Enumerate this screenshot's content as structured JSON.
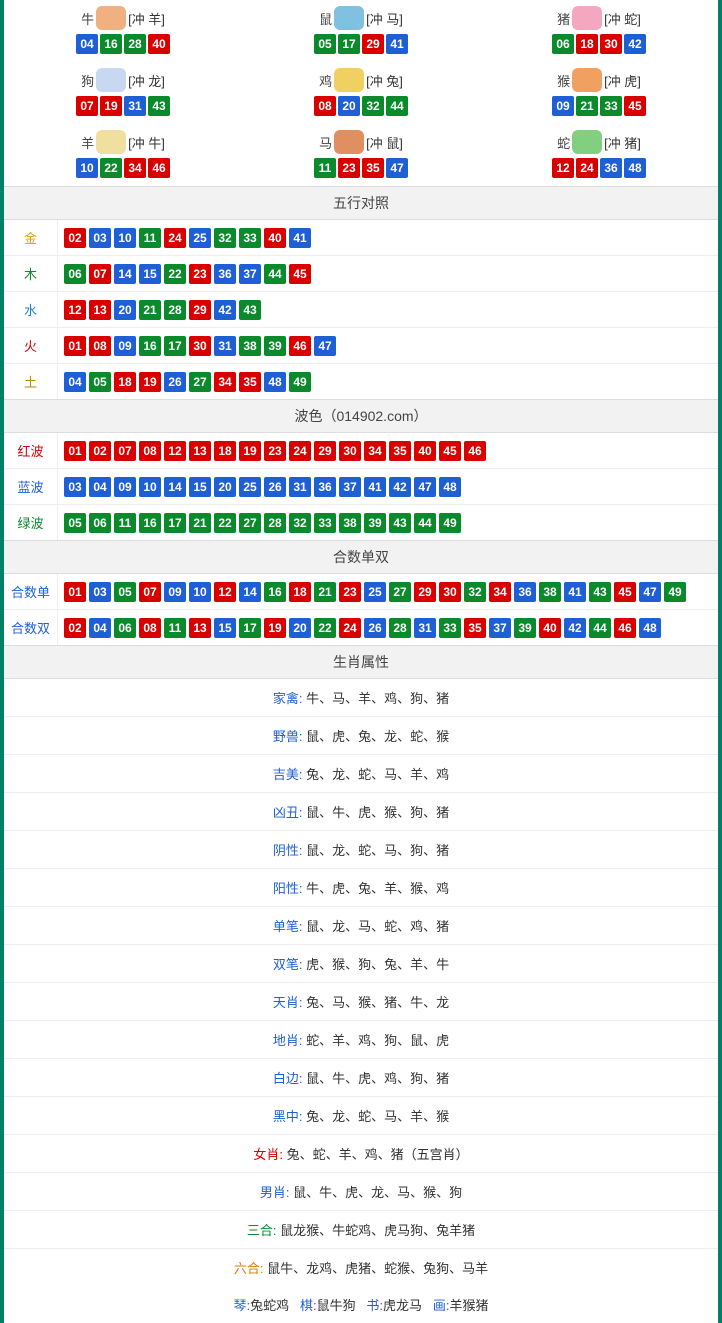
{
  "colors": {
    "red": "#d90000",
    "blue": "#1e5fd6",
    "green": "#0a8a2a"
  },
  "zodiac_icons": {
    "牛": "#f0b080",
    "鼠": "#80c0e0",
    "猪": "#f4a8c0",
    "狗": "#c8d8f0",
    "鸡": "#f0d060",
    "猴": "#f0a060",
    "羊": "#f0e0a0",
    "马": "#e09060",
    "蛇": "#80d080"
  },
  "zodiac": [
    {
      "name": "牛",
      "clash": "[冲 羊]",
      "nums": [
        {
          "n": "04",
          "c": "blue"
        },
        {
          "n": "16",
          "c": "green"
        },
        {
          "n": "28",
          "c": "green"
        },
        {
          "n": "40",
          "c": "red"
        }
      ]
    },
    {
      "name": "鼠",
      "clash": "[冲 马]",
      "nums": [
        {
          "n": "05",
          "c": "green"
        },
        {
          "n": "17",
          "c": "green"
        },
        {
          "n": "29",
          "c": "red"
        },
        {
          "n": "41",
          "c": "blue"
        }
      ]
    },
    {
      "name": "猪",
      "clash": "[冲 蛇]",
      "nums": [
        {
          "n": "06",
          "c": "green"
        },
        {
          "n": "18",
          "c": "red"
        },
        {
          "n": "30",
          "c": "red"
        },
        {
          "n": "42",
          "c": "blue"
        }
      ]
    },
    {
      "name": "狗",
      "clash": "[冲 龙]",
      "nums": [
        {
          "n": "07",
          "c": "red"
        },
        {
          "n": "19",
          "c": "red"
        },
        {
          "n": "31",
          "c": "blue"
        },
        {
          "n": "43",
          "c": "green"
        }
      ]
    },
    {
      "name": "鸡",
      "clash": "[冲 兔]",
      "nums": [
        {
          "n": "08",
          "c": "red"
        },
        {
          "n": "20",
          "c": "blue"
        },
        {
          "n": "32",
          "c": "green"
        },
        {
          "n": "44",
          "c": "green"
        }
      ]
    },
    {
      "name": "猴",
      "clash": "[冲 虎]",
      "nums": [
        {
          "n": "09",
          "c": "blue"
        },
        {
          "n": "21",
          "c": "green"
        },
        {
          "n": "33",
          "c": "green"
        },
        {
          "n": "45",
          "c": "red"
        }
      ]
    },
    {
      "name": "羊",
      "clash": "[冲 牛]",
      "nums": [
        {
          "n": "10",
          "c": "blue"
        },
        {
          "n": "22",
          "c": "green"
        },
        {
          "n": "34",
          "c": "red"
        },
        {
          "n": "46",
          "c": "red"
        }
      ]
    },
    {
      "name": "马",
      "clash": "[冲 鼠]",
      "nums": [
        {
          "n": "11",
          "c": "green"
        },
        {
          "n": "23",
          "c": "red"
        },
        {
          "n": "35",
          "c": "red"
        },
        {
          "n": "47",
          "c": "blue"
        }
      ]
    },
    {
      "name": "蛇",
      "clash": "[冲 猪]",
      "nums": [
        {
          "n": "12",
          "c": "red"
        },
        {
          "n": "24",
          "c": "red"
        },
        {
          "n": "36",
          "c": "blue"
        },
        {
          "n": "48",
          "c": "blue"
        }
      ]
    }
  ],
  "sections": {
    "wuxing_title": "五行对照",
    "bose_title": "波色（014902.com）",
    "heshu_title": "合数单双",
    "shengxiao_title": "生肖属性"
  },
  "wuxing": [
    {
      "label": "金",
      "cls": "gold",
      "nums": [
        {
          "n": "02",
          "c": "red"
        },
        {
          "n": "03",
          "c": "blue"
        },
        {
          "n": "10",
          "c": "blue"
        },
        {
          "n": "11",
          "c": "green"
        },
        {
          "n": "24",
          "c": "red"
        },
        {
          "n": "25",
          "c": "blue"
        },
        {
          "n": "32",
          "c": "green"
        },
        {
          "n": "33",
          "c": "green"
        },
        {
          "n": "40",
          "c": "red"
        },
        {
          "n": "41",
          "c": "blue"
        }
      ]
    },
    {
      "label": "木",
      "cls": "wood",
      "nums": [
        {
          "n": "06",
          "c": "green"
        },
        {
          "n": "07",
          "c": "red"
        },
        {
          "n": "14",
          "c": "blue"
        },
        {
          "n": "15",
          "c": "blue"
        },
        {
          "n": "22",
          "c": "green"
        },
        {
          "n": "23",
          "c": "red"
        },
        {
          "n": "36",
          "c": "blue"
        },
        {
          "n": "37",
          "c": "blue"
        },
        {
          "n": "44",
          "c": "green"
        },
        {
          "n": "45",
          "c": "red"
        }
      ]
    },
    {
      "label": "水",
      "cls": "water",
      "nums": [
        {
          "n": "12",
          "c": "red"
        },
        {
          "n": "13",
          "c": "red"
        },
        {
          "n": "20",
          "c": "blue"
        },
        {
          "n": "21",
          "c": "green"
        },
        {
          "n": "28",
          "c": "green"
        },
        {
          "n": "29",
          "c": "red"
        },
        {
          "n": "42",
          "c": "blue"
        },
        {
          "n": "43",
          "c": "green"
        }
      ]
    },
    {
      "label": "火",
      "cls": "fire",
      "nums": [
        {
          "n": "01",
          "c": "red"
        },
        {
          "n": "08",
          "c": "red"
        },
        {
          "n": "09",
          "c": "blue"
        },
        {
          "n": "16",
          "c": "green"
        },
        {
          "n": "17",
          "c": "green"
        },
        {
          "n": "30",
          "c": "red"
        },
        {
          "n": "31",
          "c": "blue"
        },
        {
          "n": "38",
          "c": "green"
        },
        {
          "n": "39",
          "c": "green"
        },
        {
          "n": "46",
          "c": "red"
        },
        {
          "n": "47",
          "c": "blue"
        }
      ]
    },
    {
      "label": "土",
      "cls": "earth",
      "nums": [
        {
          "n": "04",
          "c": "blue"
        },
        {
          "n": "05",
          "c": "green"
        },
        {
          "n": "18",
          "c": "red"
        },
        {
          "n": "19",
          "c": "red"
        },
        {
          "n": "26",
          "c": "blue"
        },
        {
          "n": "27",
          "c": "green"
        },
        {
          "n": "34",
          "c": "red"
        },
        {
          "n": "35",
          "c": "red"
        },
        {
          "n": "48",
          "c": "blue"
        },
        {
          "n": "49",
          "c": "green"
        }
      ]
    }
  ],
  "bose": [
    {
      "label": "红波",
      "cls": "red",
      "nums": [
        {
          "n": "01",
          "c": "red"
        },
        {
          "n": "02",
          "c": "red"
        },
        {
          "n": "07",
          "c": "red"
        },
        {
          "n": "08",
          "c": "red"
        },
        {
          "n": "12",
          "c": "red"
        },
        {
          "n": "13",
          "c": "red"
        },
        {
          "n": "18",
          "c": "red"
        },
        {
          "n": "19",
          "c": "red"
        },
        {
          "n": "23",
          "c": "red"
        },
        {
          "n": "24",
          "c": "red"
        },
        {
          "n": "29",
          "c": "red"
        },
        {
          "n": "30",
          "c": "red"
        },
        {
          "n": "34",
          "c": "red"
        },
        {
          "n": "35",
          "c": "red"
        },
        {
          "n": "40",
          "c": "red"
        },
        {
          "n": "45",
          "c": "red"
        },
        {
          "n": "46",
          "c": "red"
        }
      ]
    },
    {
      "label": "蓝波",
      "cls": "blue",
      "nums": [
        {
          "n": "03",
          "c": "blue"
        },
        {
          "n": "04",
          "c": "blue"
        },
        {
          "n": "09",
          "c": "blue"
        },
        {
          "n": "10",
          "c": "blue"
        },
        {
          "n": "14",
          "c": "blue"
        },
        {
          "n": "15",
          "c": "blue"
        },
        {
          "n": "20",
          "c": "blue"
        },
        {
          "n": "25",
          "c": "blue"
        },
        {
          "n": "26",
          "c": "blue"
        },
        {
          "n": "31",
          "c": "blue"
        },
        {
          "n": "36",
          "c": "blue"
        },
        {
          "n": "37",
          "c": "blue"
        },
        {
          "n": "41",
          "c": "blue"
        },
        {
          "n": "42",
          "c": "blue"
        },
        {
          "n": "47",
          "c": "blue"
        },
        {
          "n": "48",
          "c": "blue"
        }
      ]
    },
    {
      "label": "绿波",
      "cls": "green",
      "nums": [
        {
          "n": "05",
          "c": "green"
        },
        {
          "n": "06",
          "c": "green"
        },
        {
          "n": "11",
          "c": "green"
        },
        {
          "n": "16",
          "c": "green"
        },
        {
          "n": "17",
          "c": "green"
        },
        {
          "n": "21",
          "c": "green"
        },
        {
          "n": "22",
          "c": "green"
        },
        {
          "n": "27",
          "c": "green"
        },
        {
          "n": "28",
          "c": "green"
        },
        {
          "n": "32",
          "c": "green"
        },
        {
          "n": "33",
          "c": "green"
        },
        {
          "n": "38",
          "c": "green"
        },
        {
          "n": "39",
          "c": "green"
        },
        {
          "n": "43",
          "c": "green"
        },
        {
          "n": "44",
          "c": "green"
        },
        {
          "n": "49",
          "c": "green"
        }
      ]
    }
  ],
  "heshu": [
    {
      "label": "合数单",
      "cls": "blue",
      "nums": [
        {
          "n": "01",
          "c": "red"
        },
        {
          "n": "03",
          "c": "blue"
        },
        {
          "n": "05",
          "c": "green"
        },
        {
          "n": "07",
          "c": "red"
        },
        {
          "n": "09",
          "c": "blue"
        },
        {
          "n": "10",
          "c": "blue"
        },
        {
          "n": "12",
          "c": "red"
        },
        {
          "n": "14",
          "c": "blue"
        },
        {
          "n": "16",
          "c": "green"
        },
        {
          "n": "18",
          "c": "red"
        },
        {
          "n": "21",
          "c": "green"
        },
        {
          "n": "23",
          "c": "red"
        },
        {
          "n": "25",
          "c": "blue"
        },
        {
          "n": "27",
          "c": "green"
        },
        {
          "n": "29",
          "c": "red"
        },
        {
          "n": "30",
          "c": "red"
        },
        {
          "n": "32",
          "c": "green"
        },
        {
          "n": "34",
          "c": "red"
        },
        {
          "n": "36",
          "c": "blue"
        },
        {
          "n": "38",
          "c": "green"
        },
        {
          "n": "41",
          "c": "blue"
        },
        {
          "n": "43",
          "c": "green"
        },
        {
          "n": "45",
          "c": "red"
        },
        {
          "n": "47",
          "c": "blue"
        },
        {
          "n": "49",
          "c": "green"
        }
      ]
    },
    {
      "label": "合数双",
      "cls": "blue",
      "nums": [
        {
          "n": "02",
          "c": "red"
        },
        {
          "n": "04",
          "c": "blue"
        },
        {
          "n": "06",
          "c": "green"
        },
        {
          "n": "08",
          "c": "red"
        },
        {
          "n": "11",
          "c": "green"
        },
        {
          "n": "13",
          "c": "red"
        },
        {
          "n": "15",
          "c": "blue"
        },
        {
          "n": "17",
          "c": "green"
        },
        {
          "n": "19",
          "c": "red"
        },
        {
          "n": "20",
          "c": "blue"
        },
        {
          "n": "22",
          "c": "green"
        },
        {
          "n": "24",
          "c": "red"
        },
        {
          "n": "26",
          "c": "blue"
        },
        {
          "n": "28",
          "c": "green"
        },
        {
          "n": "31",
          "c": "blue"
        },
        {
          "n": "33",
          "c": "green"
        },
        {
          "n": "35",
          "c": "red"
        },
        {
          "n": "37",
          "c": "blue"
        },
        {
          "n": "39",
          "c": "green"
        },
        {
          "n": "40",
          "c": "red"
        },
        {
          "n": "42",
          "c": "blue"
        },
        {
          "n": "44",
          "c": "green"
        },
        {
          "n": "46",
          "c": "red"
        },
        {
          "n": "48",
          "c": "blue"
        }
      ]
    }
  ],
  "attrs": [
    {
      "key": "家禽",
      "cls": "",
      "val": "牛、马、羊、鸡、狗、猪"
    },
    {
      "key": "野兽",
      "cls": "",
      "val": "鼠、虎、兔、龙、蛇、猴"
    },
    {
      "key": "吉美",
      "cls": "",
      "val": "兔、龙、蛇、马、羊、鸡"
    },
    {
      "key": "凶丑",
      "cls": "",
      "val": "鼠、牛、虎、猴、狗、猪"
    },
    {
      "key": "阴性",
      "cls": "",
      "val": "鼠、龙、蛇、马、狗、猪"
    },
    {
      "key": "阳性",
      "cls": "",
      "val": "牛、虎、兔、羊、猴、鸡"
    },
    {
      "key": "单笔",
      "cls": "",
      "val": "鼠、龙、马、蛇、鸡、猪"
    },
    {
      "key": "双笔",
      "cls": "",
      "val": "虎、猴、狗、兔、羊、牛"
    },
    {
      "key": "天肖",
      "cls": "",
      "val": "兔、马、猴、猪、牛、龙"
    },
    {
      "key": "地肖",
      "cls": "",
      "val": "蛇、羊、鸡、狗、鼠、虎"
    },
    {
      "key": "白边",
      "cls": "",
      "val": "鼠、牛、虎、鸡、狗、猪"
    },
    {
      "key": "黑中",
      "cls": "",
      "val": "兔、龙、蛇、马、羊、猴"
    },
    {
      "key": "女肖",
      "cls": "red",
      "val": "兔、蛇、羊、鸡、猪（五宫肖）"
    },
    {
      "key": "男肖",
      "cls": "",
      "val": "鼠、牛、虎、龙、马、猴、狗"
    },
    {
      "key": "三合",
      "cls": "green",
      "val": "鼠龙猴、牛蛇鸡、虎马狗、兔羊猪"
    },
    {
      "key": "六合",
      "cls": "orange",
      "val": "鼠牛、龙鸡、虎猪、蛇猴、兔狗、马羊"
    }
  ],
  "bottom": [
    {
      "k": "琴",
      "v": "兔蛇鸡"
    },
    {
      "k": "棋",
      "v": "鼠牛狗"
    },
    {
      "k": "书",
      "v": "虎龙马"
    },
    {
      "k": "画",
      "v": "羊猴猪"
    }
  ]
}
